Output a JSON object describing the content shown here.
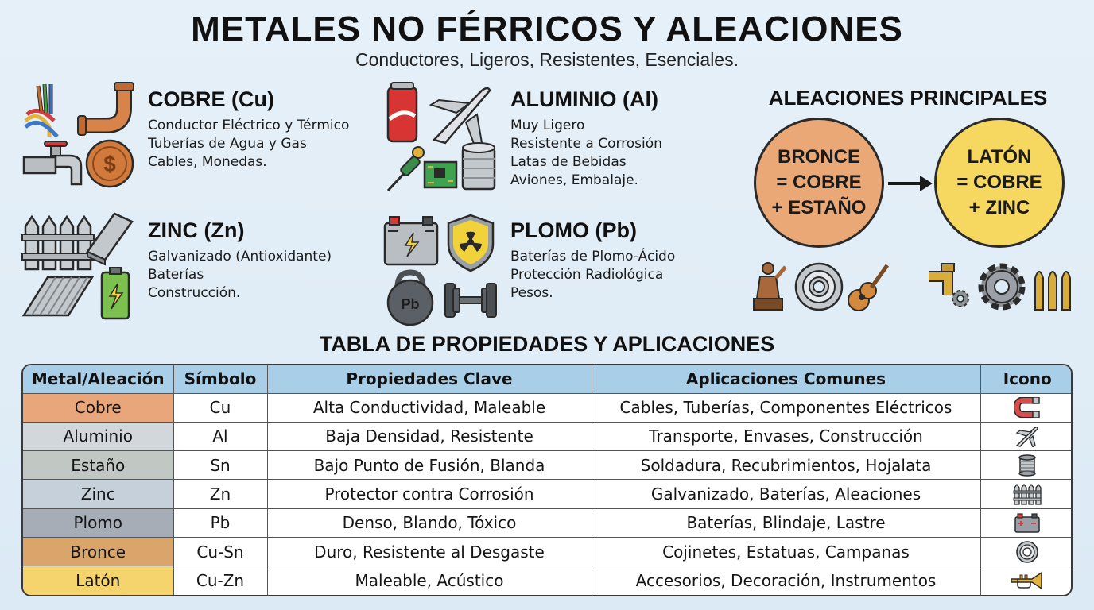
{
  "header": {
    "title": "METALES NO FÉRRICOS Y ALEACIONES",
    "subtitle": "Conductores, Ligeros, Resistentes, Esenciales."
  },
  "metals": {
    "copper": {
      "name": "COBRE (Cu)",
      "lines": [
        "Conductor Eléctrico y Térmico",
        "Tuberías de Agua y Gas",
        "Cables, Monedas."
      ],
      "icons": [
        "cables-icon",
        "pipe-elbow-icon",
        "faucet-icon",
        "coin-icon"
      ]
    },
    "aluminum": {
      "name": "ALUMINIO (Al)",
      "lines": [
        "Muy Ligero",
        "Resistente a Corrosión",
        "Latas de Bebidas",
        "Aviones, Embalaje."
      ],
      "icons": [
        "soda-can-icon",
        "airplane-icon",
        "soldering-iron-icon",
        "circuit-board-icon",
        "tin-can-icon"
      ]
    },
    "zinc": {
      "name": "ZINC (Zn)",
      "lines": [
        "Galvanizado (Antioxidante)",
        "Baterías",
        "Construcción."
      ],
      "icons": [
        "fence-icon",
        "metal-sheet-icon",
        "corrugated-sheet-icon",
        "battery-icon"
      ]
    },
    "lead": {
      "name": "PLOMO (Pb)",
      "lines": [
        "Baterías de Plomo-Ácido",
        "Protección Radiológica",
        "Pesos."
      ],
      "icons": [
        "car-battery-icon",
        "radiation-shield-icon",
        "kettlebell-icon",
        "dumbbell-icon"
      ],
      "kettlebell_label": "Pb"
    }
  },
  "alloys": {
    "title": "ALEACIONES PRINCIPALES",
    "bronze": {
      "lines": [
        "BRONCE",
        "= COBRE",
        "+ ESTAÑO"
      ],
      "color": "#eba877"
    },
    "brass": {
      "lines": [
        "LATÓN",
        "= COBRE",
        "+ ZINC"
      ],
      "color": "#f6d760"
    },
    "bronze_icons": [
      "statue-icon",
      "bearing-icon",
      "guitar-icon"
    ],
    "brass_icons": [
      "brass-fitting-icon",
      "gear-icon",
      "bullets-icon"
    ]
  },
  "table": {
    "title": "TABLA DE PROPIEDADES Y APLICACIONES",
    "headers": [
      "Metal/Aleación",
      "Símbolo",
      "Propiedades Clave",
      "Aplicaciones Comunes",
      "Icono"
    ],
    "rows": [
      {
        "metal": "Cobre",
        "symbol": "Cu",
        "properties": "Alta Conductividad, Maleable",
        "applications": "Cables, Tuberías, Componentes Eléctricos",
        "icon": "magnet-icon",
        "color": "#e9a67a"
      },
      {
        "metal": "Aluminio",
        "symbol": "Al",
        "properties": "Baja Densidad, Resistente",
        "applications": "Transporte, Envases, Construcción",
        "icon": "airplane-icon",
        "color": "#d2d7db"
      },
      {
        "metal": "Estaño",
        "symbol": "Sn",
        "properties": "Bajo Punto de Fusión, Blanda",
        "applications": "Soldadura, Recubrimientos, Hojalata",
        "icon": "wire-spool-icon",
        "color": "#c1c8c4"
      },
      {
        "metal": "Zinc",
        "symbol": "Zn",
        "properties": "Protector contra Corrosión",
        "applications": "Galvanizado, Baterías, Aleaciones",
        "icon": "fence-icon",
        "color": "#c5d0da"
      },
      {
        "metal": "Plomo",
        "symbol": "Pb",
        "properties": "Denso, Blando, Tóxico",
        "applications": "Baterías, Blindaje, Lastre",
        "icon": "car-battery-icon",
        "color": "#a7adb6"
      },
      {
        "metal": "Bronce",
        "symbol": "Cu-Sn",
        "properties": "Duro, Resistente al Desgaste",
        "applications": "Cojinetes, Estatuas, Campanas",
        "icon": "bearing-icon",
        "color": "#d9a56a"
      },
      {
        "metal": "Latón",
        "symbol": "Cu-Zn",
        "properties": "Maleable, Acústico",
        "applications": "Accesorios, Decoración, Instrumentos",
        "icon": "trumpet-icon",
        "color": "#f5d46d"
      }
    ]
  }
}
